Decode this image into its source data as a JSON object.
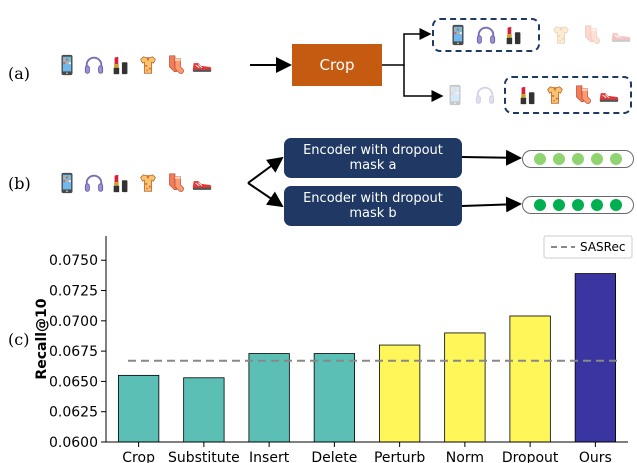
{
  "panel_a": {
    "label": "(a)",
    "items": [
      "phone-icon",
      "headphones-icon",
      "lipstick-icon",
      "shirt-icon",
      "socks-icon",
      "sneaker-icon"
    ],
    "op_label": "Crop",
    "op_color": "#c55a11"
  },
  "panel_b": {
    "label": "(b)",
    "items": [
      "phone-icon",
      "headphones-icon",
      "lipstick-icon",
      "shirt-icon",
      "socks-icon",
      "sneaker-icon"
    ],
    "encoder_a": "Encoder with dropout mask a",
    "encoder_b": "Encoder with dropout mask b",
    "embedding_a_color": "#8fd470",
    "embedding_b_color": "#00b050"
  },
  "panel_c": {
    "label": "(c)"
  },
  "chart_data": {
    "type": "bar",
    "categories": [
      "Crop",
      "Substitute",
      "Insert",
      "Delete",
      "Perturb",
      "Norm",
      "Dropout",
      "Ours"
    ],
    "values": [
      0.0655,
      0.0653,
      0.0673,
      0.0673,
      0.068,
      0.069,
      0.0704,
      0.0739
    ],
    "colors": [
      "#5bbfb5",
      "#5bbfb5",
      "#5bbfb5",
      "#5bbfb5",
      "#fff75a",
      "#fff75a",
      "#fff75a",
      "#3a35a0"
    ],
    "ylabel": "Recall@10",
    "ylim": [
      0.06,
      0.077
    ],
    "yticks": [
      "0.0600",
      "0.0625",
      "0.0650",
      "0.0675",
      "0.0700",
      "0.0725",
      "0.0750"
    ],
    "baseline": {
      "name": "SASRec",
      "value": 0.0667
    },
    "legend_position": "top-right",
    "grid": false
  }
}
